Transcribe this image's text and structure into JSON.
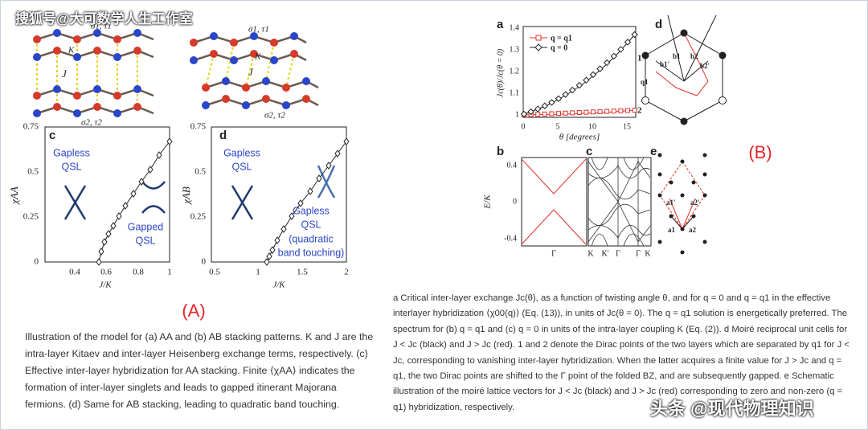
{
  "watermark_top": "搜狐号@大可数学人生工作室",
  "watermark_bottom": "头条 @现代物理知识",
  "panel_A": {
    "lattice_labels": [
      "σ1, τ1",
      "K",
      "J",
      "σ2, τ2",
      "σ1, τ1",
      "K",
      "J",
      "σ2, τ2"
    ],
    "plot_c": {
      "label": "c",
      "y_label": "χAA",
      "x_label": "J/K",
      "yticks": [
        "0",
        "0.25",
        "0.5",
        "0.75"
      ],
      "xticks": [
        "0.4",
        "0.6",
        "0.8",
        "1"
      ],
      "annotations": [
        "Gapless",
        "QSL",
        "Gapped",
        "QSL"
      ]
    },
    "plot_d": {
      "label": "d",
      "y_label": "χAB",
      "x_label": "J/K",
      "yticks": [
        "0",
        "0.25",
        "0.5",
        "0.75"
      ],
      "xticks": [
        "0.5",
        "1",
        "1.5",
        "2"
      ],
      "annotations": [
        "Gapless",
        "QSL",
        "Gapless",
        "QSL",
        "(quadratic",
        "band touching)"
      ]
    },
    "tag": "(A)",
    "caption": "Illustration of the model for (a) AA and (b) AB stacking patterns. K and J are the intra-layer Kitaev and inter-layer Heisenberg exchange terms, respectively. (c) Effective inter-layer hybridization for AA stacking. Finite ⟨χAA⟩ indicates the formation of inter-layer singlets and leads to gapped itinerant Majorana fermions. (d) Same for AB stacking, leading to quadratic band touching."
  },
  "panel_B": {
    "plot_a": {
      "label": "a",
      "legend": [
        "q = q1",
        "q = 0"
      ],
      "y_label": "Jc(θ)/Jc(θ = 0)",
      "x_label": "θ [degrees]",
      "yticks": [
        "1",
        "1.1",
        "1.2",
        "1.3",
        "1.4"
      ],
      "xticks": [
        "0",
        "5",
        "10",
        "15"
      ]
    },
    "plot_d": {
      "label": "d",
      "labels": [
        "1",
        "2",
        "q1",
        "b1",
        "b2",
        "b1'",
        "b2'"
      ]
    },
    "plot_b": {
      "label": "b",
      "y_label": "E/K",
      "yticks": [
        "0.4",
        "0",
        "-0.4"
      ],
      "xticks": [
        "Γ",
        "K"
      ]
    },
    "plot_c": {
      "label": "c",
      "xticks": [
        "K'",
        "Γ",
        "Γ",
        "K"
      ]
    },
    "plot_e": {
      "label": "e",
      "labels": [
        "a1'",
        "a2'",
        "a1",
        "a2"
      ]
    },
    "tag": "(B)",
    "caption": "a Critical inter-layer exchange Jc(θ), as a function of twisting angle θ, and for q = 0 and q = q1 in the effective interlayer hybridization ⟨χ00(q)⟩ (Eq. (13)), in units of Jc(θ = 0). The q = q1 solution is energetically preferred. The spectrum for (b) q = q1 and (c) q = 0 in units of the intra-layer coupling K (Eq. (2)). d Moiré reciprocal unit cells for J < Jc (black) and J > Jc (red). 1 and 2 denote the Dirac points of the two layers which are separated by q1 for J < Jc, corresponding to vanishing inter-layer hybridization. When the latter acquires a finite value for J > Jc and q = q1, the two Dirac points are shifted to the Γ point of the folded BZ, and are subsequently gapped. e Schematic illustration of the moiré lattice vectors for J < Jc (black) and J > Jc (red) corresponding to zero and non-zero (q = q1) hybridization, respectively."
  }
}
